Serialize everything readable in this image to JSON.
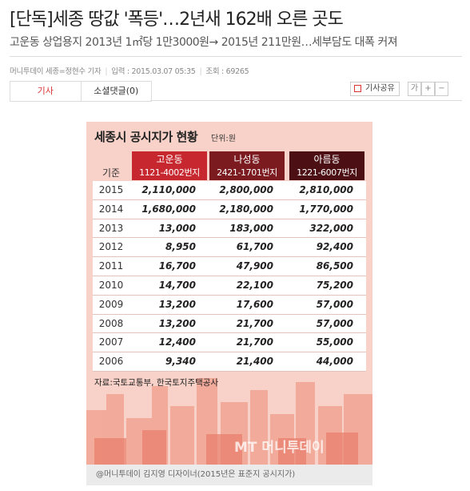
{
  "header": {
    "title": "[단독]세종 땅값 '폭등'…2년새 162배 오른 곳도",
    "subtitle": "고운동 상업용지 2013년 1㎡당 1만3000원→ 2015년 211만원…세부담도 대폭 커져"
  },
  "byline": {
    "reporter": "머니투데이 세종=정현수 기자",
    "date": "입력 : 2015.03.07 05:35",
    "views": "조회 : 69265"
  },
  "toolbar": {
    "share": "기사공유",
    "font_label": "가",
    "zoom_in": "+",
    "zoom_out": "−"
  },
  "tabs": [
    "기사",
    "소셜댓글(0)"
  ],
  "infographic": {
    "title": "세종시 공시지가 현황",
    "unit": "단위:원",
    "row_header": "기준",
    "columns": [
      {
        "name": "고운동",
        "range": "1121-4002번지"
      },
      {
        "name": "나성동",
        "range": "2421-1701번지"
      },
      {
        "name": "아름동",
        "range": "1221-6007번지"
      }
    ],
    "rows": [
      [
        "2015",
        "2,110,000",
        "2,800,000",
        "2,810,000"
      ],
      [
        "2014",
        "1,680,000",
        "2,180,000",
        "1,770,000"
      ],
      [
        "2013",
        "13,000",
        "183,000",
        "322,000"
      ],
      [
        "2012",
        "8,950",
        "61,700",
        "92,400"
      ],
      [
        "2011",
        "16,700",
        "47,900",
        "86,500"
      ],
      [
        "2010",
        "14,700",
        "22,100",
        "75,200"
      ],
      [
        "2009",
        "13,200",
        "17,600",
        "57,000"
      ],
      [
        "2008",
        "13,200",
        "21,700",
        "57,000"
      ],
      [
        "2007",
        "12,400",
        "21,700",
        "55,000"
      ],
      [
        "2006",
        "9,340",
        "21,400",
        "44,000"
      ]
    ],
    "source": "자료:국토교통부, 한국토지주택공사",
    "watermark": "MT 머니투데이",
    "caption": "@머니투데이 김지영 디자이너(2015년은 표준지 공시지가)"
  }
}
